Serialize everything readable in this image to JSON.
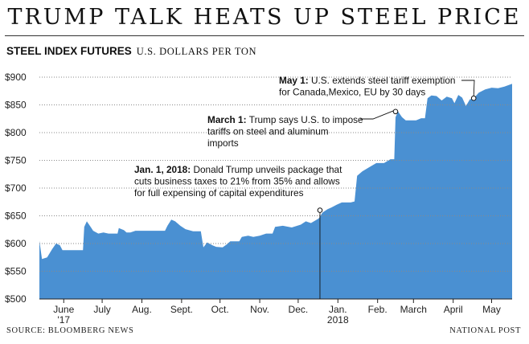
{
  "header": {
    "title": "TRUMP TALK HEATS UP STEEL PRICE",
    "subtitle_bold": "STEEL INDEX FUTURES",
    "subtitle_units": "U.S. DOLLARS PER TON"
  },
  "footer": {
    "source": "SOURCE: BLOOMBERG NEWS",
    "credit": "NATIONAL POST"
  },
  "chart_data": {
    "type": "area",
    "title": "TRUMP TALK HEATS UP STEEL PRICE",
    "subtitle": "STEEL INDEX FUTURES",
    "ylabel": "U.S. DOLLARS PER TON",
    "xlabel": "",
    "ylim": [
      500,
      900
    ],
    "xlim": [
      "2017-05-27",
      "2018-05-31"
    ],
    "y_ticks": [
      500,
      550,
      600,
      650,
      700,
      750,
      800,
      850,
      900
    ],
    "y_tick_labels": [
      "$500",
      "$550",
      "$600",
      "$650",
      "$700",
      "$750",
      "$800",
      "$850",
      "$900"
    ],
    "x_ticks": [
      {
        "date": "2017-06-15",
        "label": "June",
        "label2": "'17"
      },
      {
        "date": "2017-07-15",
        "label": "July",
        "label2": ""
      },
      {
        "date": "2017-08-15",
        "label": "Aug.",
        "label2": ""
      },
      {
        "date": "2017-09-15",
        "label": "Sept.",
        "label2": ""
      },
      {
        "date": "2017-10-15",
        "label": "Oct.",
        "label2": ""
      },
      {
        "date": "2017-11-15",
        "label": "Nov.",
        "label2": ""
      },
      {
        "date": "2017-12-15",
        "label": "Dec.",
        "label2": ""
      },
      {
        "date": "2018-01-15",
        "label": "Jan.",
        "label2": "2018"
      },
      {
        "date": "2018-02-15",
        "label": "Feb.",
        "label2": ""
      },
      {
        "date": "2018-03-15",
        "label": "March",
        "label2": ""
      },
      {
        "date": "2018-04-15",
        "label": "April",
        "label2": ""
      },
      {
        "date": "2018-05-15",
        "label": "May",
        "label2": ""
      }
    ],
    "grid": true,
    "legend": "none",
    "colors": {
      "fill": "#4a90d2",
      "grid": "#8a8a8a",
      "axis": "#222222",
      "text": "#111111"
    },
    "series": [
      {
        "points": [
          [
            "2017-05-27",
            605
          ],
          [
            "2017-05-29",
            572
          ],
          [
            "2017-06-02",
            575
          ],
          [
            "2017-06-06",
            590
          ],
          [
            "2017-06-09",
            600
          ],
          [
            "2017-06-12",
            597
          ],
          [
            "2017-06-14",
            588
          ],
          [
            "2017-06-30",
            588
          ],
          [
            "2017-07-01",
            630
          ],
          [
            "2017-07-03",
            640
          ],
          [
            "2017-07-06",
            630
          ],
          [
            "2017-07-08",
            623
          ],
          [
            "2017-07-12",
            618
          ],
          [
            "2017-07-16",
            620
          ],
          [
            "2017-07-20",
            618
          ],
          [
            "2017-07-27",
            618
          ],
          [
            "2017-07-28",
            628
          ],
          [
            "2017-08-01",
            624
          ],
          [
            "2017-08-03",
            620
          ],
          [
            "2017-08-06",
            620
          ],
          [
            "2017-08-10",
            623
          ],
          [
            "2017-08-25",
            623
          ],
          [
            "2017-09-02",
            623
          ],
          [
            "2017-09-04",
            632
          ],
          [
            "2017-09-07",
            643
          ],
          [
            "2017-09-10",
            640
          ],
          [
            "2017-09-14",
            632
          ],
          [
            "2017-09-18",
            626
          ],
          [
            "2017-09-24",
            622
          ],
          [
            "2017-09-30",
            622
          ],
          [
            "2017-10-02",
            593
          ],
          [
            "2017-10-05",
            602
          ],
          [
            "2017-10-09",
            597
          ],
          [
            "2017-10-12",
            594
          ],
          [
            "2017-10-17",
            593
          ],
          [
            "2017-10-20",
            598
          ],
          [
            "2017-10-23",
            604
          ],
          [
            "2017-10-30",
            604
          ],
          [
            "2017-11-01",
            612
          ],
          [
            "2017-11-06",
            614
          ],
          [
            "2017-11-10",
            612
          ],
          [
            "2017-11-15",
            614
          ],
          [
            "2017-11-20",
            618
          ],
          [
            "2017-11-25",
            618
          ],
          [
            "2017-11-27",
            630
          ],
          [
            "2017-12-03",
            632
          ],
          [
            "2017-12-10",
            629
          ],
          [
            "2017-12-17",
            634
          ],
          [
            "2017-12-21",
            640
          ],
          [
            "2017-12-25",
            637
          ],
          [
            "2017-12-31",
            645
          ],
          [
            "2018-01-03",
            656
          ],
          [
            "2018-01-07",
            662
          ],
          [
            "2018-01-10",
            665
          ],
          [
            "2018-01-14",
            670
          ],
          [
            "2018-01-18",
            674
          ],
          [
            "2018-01-25",
            674
          ],
          [
            "2018-01-28",
            676
          ],
          [
            "2018-01-30",
            722
          ],
          [
            "2018-02-03",
            730
          ],
          [
            "2018-02-08",
            737
          ],
          [
            "2018-02-14",
            745
          ],
          [
            "2018-02-20",
            745
          ],
          [
            "2018-02-25",
            752
          ],
          [
            "2018-02-28",
            752
          ],
          [
            "2018-03-01",
            828
          ],
          [
            "2018-03-03",
            838
          ],
          [
            "2018-03-06",
            828
          ],
          [
            "2018-03-09",
            822
          ],
          [
            "2018-03-17",
            822
          ],
          [
            "2018-03-21",
            826
          ],
          [
            "2018-03-24",
            826
          ],
          [
            "2018-03-26",
            862
          ],
          [
            "2018-03-29",
            867
          ],
          [
            "2018-04-02",
            866
          ],
          [
            "2018-04-06",
            858
          ],
          [
            "2018-04-10",
            865
          ],
          [
            "2018-04-14",
            862
          ],
          [
            "2018-04-16",
            853
          ],
          [
            "2018-04-19",
            868
          ],
          [
            "2018-04-22",
            863
          ],
          [
            "2018-04-25",
            848
          ],
          [
            "2018-04-28",
            860
          ],
          [
            "2018-05-01",
            862
          ],
          [
            "2018-05-05",
            872
          ],
          [
            "2018-05-10",
            878
          ],
          [
            "2018-05-15",
            881
          ],
          [
            "2018-05-20",
            880
          ],
          [
            "2018-05-25",
            883
          ],
          [
            "2018-05-31",
            888
          ]
        ]
      }
    ],
    "annotations": [
      {
        "date": "2018-01-01",
        "value": 660,
        "bold": "Jan. 1, 2018:",
        "lines": [
          "Donald Trump unveils package that",
          "cuts business taxes to 21% from 35% and allows",
          "for full expensing of capital expenditures"
        ]
      },
      {
        "date": "2018-03-01",
        "value": 838,
        "bold": "March 1:",
        "lines": [
          "Trump says U.S. to impose",
          "tariffs on steel and aluminum",
          "imports"
        ]
      },
      {
        "date": "2018-05-01",
        "value": 862,
        "bold": "May 1:",
        "lines": [
          "U.S. extends steel tariff exemption",
          "for Canada,Mexico, EU by 30 days"
        ]
      }
    ]
  }
}
